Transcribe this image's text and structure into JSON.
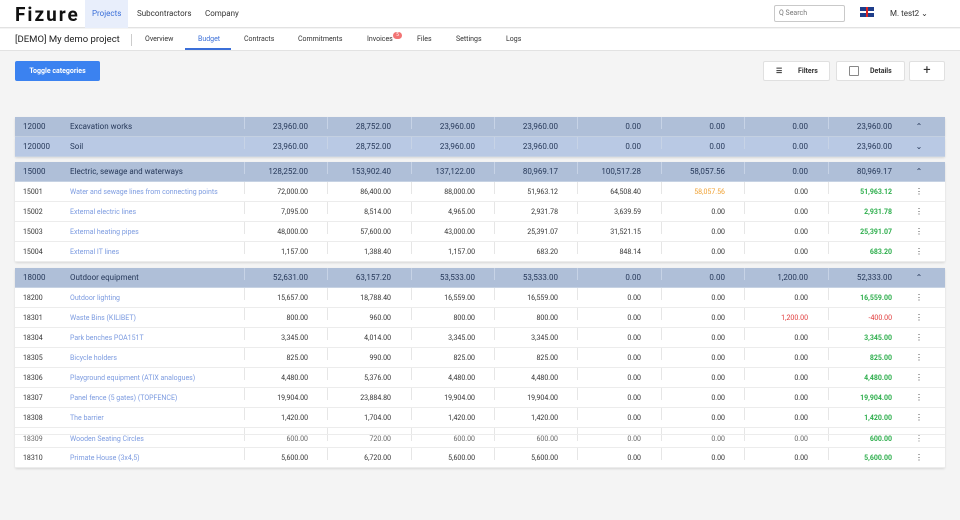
{
  "header": {
    "logo": "Fizure",
    "tabs": [
      "Projects",
      "Subcontractors",
      "Company"
    ],
    "search_placeholder": "Q Search",
    "user": "M. test2 ⌄"
  },
  "subnav": {
    "project": "[DEMO] My demo project",
    "tabs": [
      "Overview",
      "Budget",
      "Contracts",
      "Commitments",
      "Invoices",
      "Files",
      "Settings",
      "Logs"
    ],
    "invoice_badge": "5"
  },
  "toolbar": {
    "toggle": "Toggle categories",
    "filters": "Filters",
    "details": "Details",
    "add": "+"
  },
  "groups": [
    {
      "code": "12000",
      "name": "Excavation works",
      "vals": [
        "23,960.00",
        "28,752.00",
        "23,960.00",
        "23,960.00",
        "0.00",
        "0.00",
        "0.00",
        "23,960.00"
      ],
      "toggle": "⌃",
      "items": []
    },
    {
      "code": "120000",
      "name": "Soil",
      "vals": [
        "23,960.00",
        "28,752.00",
        "23,960.00",
        "23,960.00",
        "0.00",
        "0.00",
        "0.00",
        "23,960.00"
      ],
      "toggle": "⌄",
      "light": true,
      "items": []
    },
    {
      "code": "15000",
      "name": "Electric, sewage and waterways",
      "vals": [
        "128,252.00",
        "153,902.40",
        "137,122.00",
        "80,969.17",
        "100,517.28",
        "58,057.56",
        "0.00",
        "80,969.17"
      ],
      "toggle": "⌃",
      "items": [
        {
          "code": "15001",
          "name": "Water and sewage lines from connecting points",
          "vals": [
            "72,000.00",
            "86,400.00",
            "88,000.00",
            "51,963.12",
            "64,508.40",
            "58,057.56",
            "0.00",
            "51,963.12"
          ]
        },
        {
          "code": "15002",
          "name": "External electric lines",
          "vals": [
            "7,095.00",
            "8,514.00",
            "4,965.00",
            "2,931.78",
            "3,639.59",
            "0.00",
            "0.00",
            "2,931.78"
          ]
        },
        {
          "code": "15003",
          "name": "External heating pipes",
          "vals": [
            "48,000.00",
            "57,600.00",
            "43,000.00",
            "25,391.07",
            "31,521.15",
            "0.00",
            "0.00",
            "25,391.07"
          ]
        },
        {
          "code": "15004",
          "name": "External IT lines",
          "vals": [
            "1,157.00",
            "1,388.40",
            "1,157.00",
            "683.20",
            "848.14",
            "0.00",
            "0.00",
            "683.20"
          ]
        }
      ]
    },
    {
      "code": "18000",
      "name": "Outdoor equipment",
      "vals": [
        "52,631.00",
        "63,157.20",
        "53,533.00",
        "53,533.00",
        "0.00",
        "0.00",
        "1,200.00",
        "52,333.00"
      ],
      "toggle": "⌃",
      "items": [
        {
          "code": "18200",
          "name": "Outdoor lighting",
          "vals": [
            "15,657.00",
            "18,788.40",
            "16,559.00",
            "16,559.00",
            "0.00",
            "0.00",
            "0.00",
            "16,559.00"
          ]
        },
        {
          "code": "18301",
          "name": "Waste Bins (KILIBET)",
          "vals": [
            "800.00",
            "960.00",
            "800.00",
            "800.00",
            "0.00",
            "0.00",
            "1,200.00",
            "-400.00"
          ]
        },
        {
          "code": "18304",
          "name": "Park benches POA151T",
          "vals": [
            "3,345.00",
            "4,014.00",
            "3,345.00",
            "3,345.00",
            "0.00",
            "0.00",
            "0.00",
            "3,345.00"
          ]
        },
        {
          "code": "18305",
          "name": "Bicycle holders",
          "vals": [
            "825.00",
            "990.00",
            "825.00",
            "825.00",
            "0.00",
            "0.00",
            "0.00",
            "825.00"
          ]
        },
        {
          "code": "18306",
          "name": "Playground equipment (ATIX analogues)",
          "vals": [
            "4,480.00",
            "5,376.00",
            "4,480.00",
            "4,480.00",
            "0.00",
            "0.00",
            "0.00",
            "4,480.00"
          ]
        },
        {
          "code": "18307",
          "name": "Panel fence (5 gates) (TOPFENCE)",
          "vals": [
            "19,904.00",
            "23,884.80",
            "19,904.00",
            "19,904.00",
            "0.00",
            "0.00",
            "0.00",
            "19,904.00"
          ]
        },
        {
          "code": "18308",
          "name": "The barrier",
          "vals": [
            "1,420.00",
            "1,704.00",
            "1,420.00",
            "1,420.00",
            "0.00",
            "0.00",
            "0.00",
            "1,420.00"
          ]
        },
        {
          "code": "18309",
          "name": "Wooden Seating Circles",
          "vals": [
            "600.00",
            "720.00",
            "600.00",
            "600.00",
            "0.00",
            "0.00",
            "0.00",
            "600.00"
          ]
        },
        {
          "code": "18310",
          "name": "Primate House (3x4,5)",
          "vals": [
            "5,600.00",
            "6,720.00",
            "5,600.00",
            "5,600.00",
            "0.00",
            "0.00",
            "0.00",
            "5,600.00"
          ]
        }
      ]
    }
  ],
  "overlap": {
    "code": "18309",
    "name": "Wooden Seating Circles",
    "vals": [
      "600.00",
      "720.00",
      "600.00",
      "600.00",
      "0.00",
      "0.00",
      "0.00",
      "600.00"
    ]
  },
  "colors": {
    "primary": "#3b82f0",
    "group": "#afbfd8",
    "green": "#2eae4d",
    "red": "#e03a3a",
    "orange": "#f0a030"
  }
}
